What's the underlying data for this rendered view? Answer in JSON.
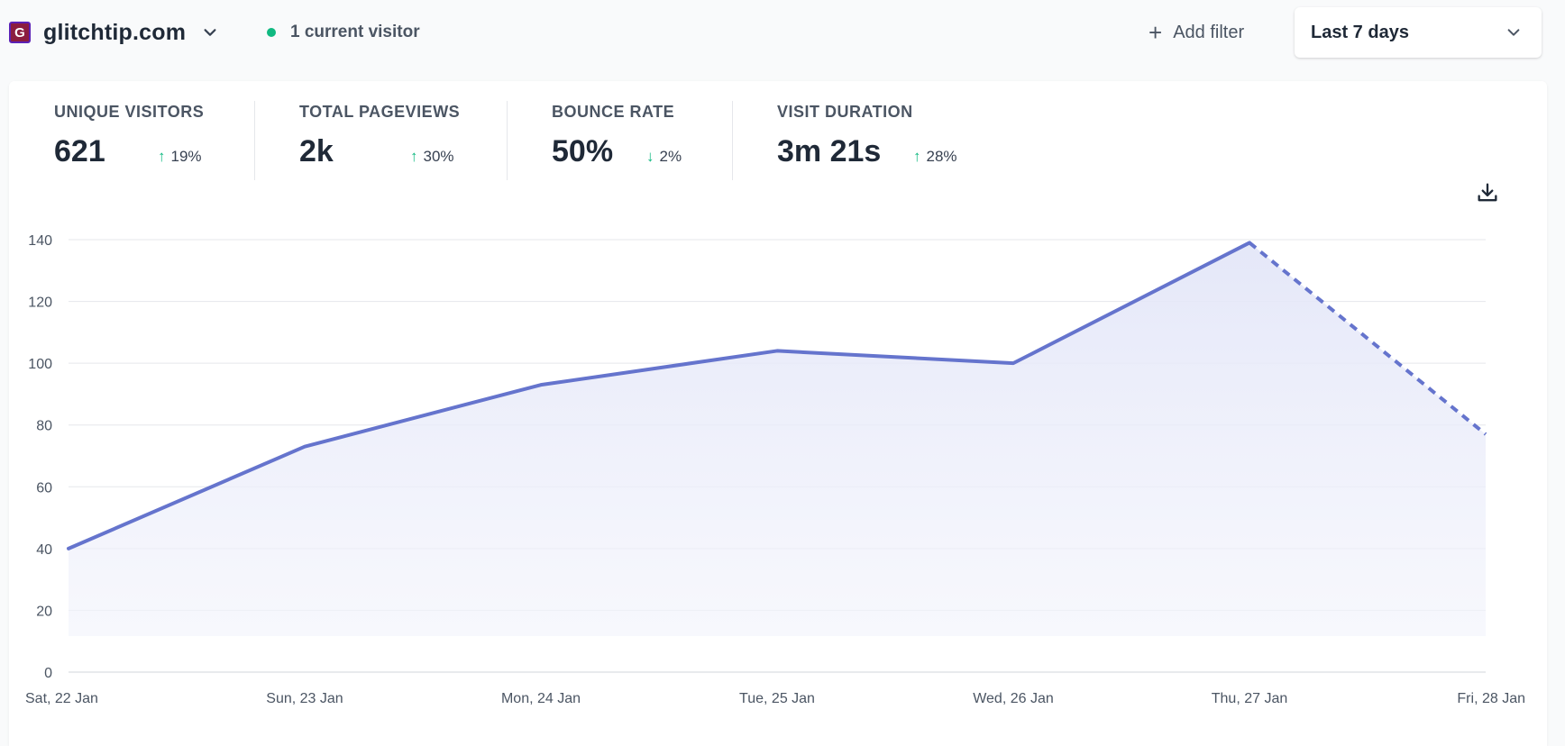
{
  "header": {
    "favicon_letter": "G",
    "site_name": "glitchtip.com",
    "current_visitors": "1 current visitor",
    "add_filter": "Add filter",
    "period": "Last 7 days",
    "colors": {
      "live_dot": "#10b981",
      "favicon_bg": "#8b1d3f"
    }
  },
  "stats": [
    {
      "label": "UNIQUE VISITORS",
      "value": "621",
      "change": "19%",
      "direction": "up"
    },
    {
      "label": "TOTAL PAGEVIEWS",
      "value": "2k",
      "change": "30%",
      "direction": "up"
    },
    {
      "label": "BOUNCE RATE",
      "value": "50%",
      "change": "2%",
      "direction": "down"
    },
    {
      "label": "VISIT DURATION",
      "value": "3m 21s",
      "change": "28%",
      "direction": "up"
    }
  ],
  "icons": {
    "download": "download-icon"
  },
  "chart_data": {
    "type": "area",
    "categories": [
      "Sat, 22 Jan",
      "Sun, 23 Jan",
      "Mon, 24 Jan",
      "Tue, 25 Jan",
      "Wed, 26 Jan",
      "Thu, 27 Jan",
      "Fri, 28 Jan"
    ],
    "values": [
      40,
      73,
      93,
      104,
      100,
      139,
      77
    ],
    "partial_last_point": true,
    "yticks": [
      0,
      20,
      40,
      60,
      80,
      100,
      120,
      140
    ],
    "ylim": [
      0,
      140
    ],
    "grid": true,
    "line_color": "#6574cd",
    "fill_color": "#e8eafa"
  }
}
